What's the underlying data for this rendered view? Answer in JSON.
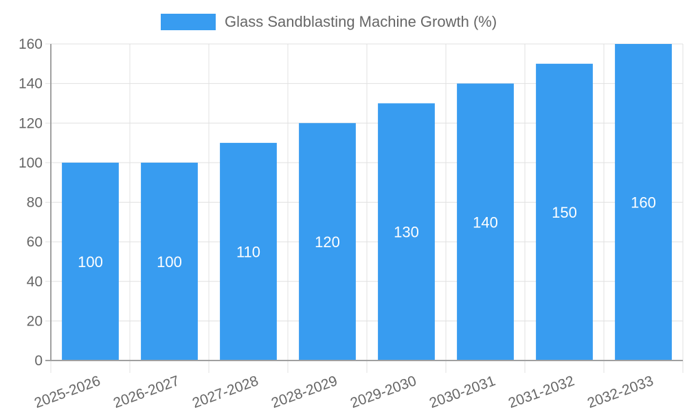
{
  "chart_data": {
    "type": "bar",
    "title": "",
    "xlabel": "",
    "ylabel": "",
    "ylim": [
      0,
      160
    ],
    "yticks": [
      0,
      20,
      40,
      60,
      80,
      100,
      120,
      140,
      160
    ],
    "grid": true,
    "legend_position": "top",
    "categories": [
      "2025-2026",
      "2026-2027",
      "2027-2028",
      "2028-2029",
      "2029-2030",
      "2030-2031",
      "2031-2032",
      "2032-2033"
    ],
    "series": [
      {
        "name": "Glass Sandblasting Machine Growth (%)",
        "values": [
          100,
          100,
          110,
          120,
          130,
          140,
          150,
          160
        ],
        "color": "#389cf0",
        "data_labels": [
          "100",
          "100",
          "110",
          "120",
          "130",
          "140",
          "150",
          "160"
        ]
      }
    ]
  },
  "legend": {
    "label": "Glass Sandblasting Machine Growth (%)",
    "color": "#389cf0"
  }
}
